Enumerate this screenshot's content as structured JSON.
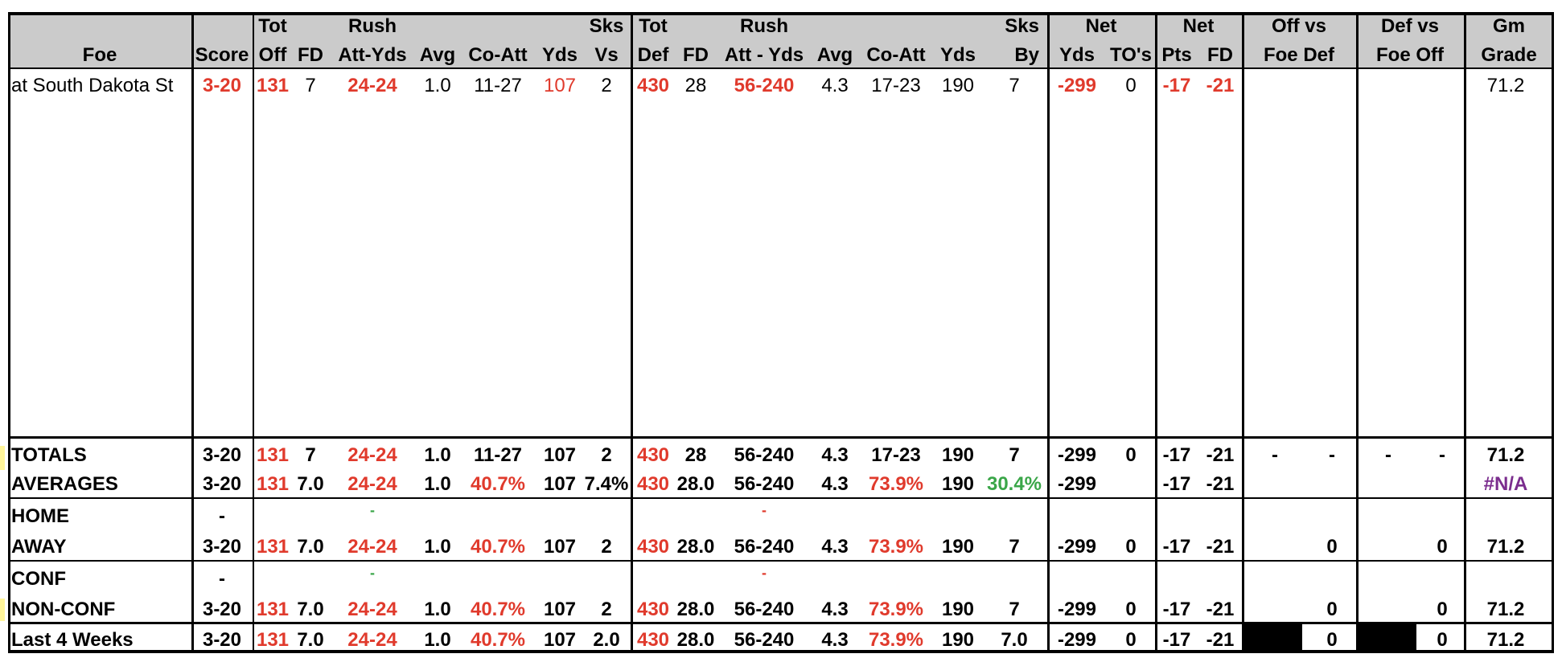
{
  "headers": {
    "foe": "Foe",
    "score": "Score",
    "tot_off_1": "Tot",
    "tot_off_2": "Off",
    "fd_off": "FD",
    "rush_off_1": "Rush",
    "rush_off_2": "Att-Yds",
    "avg_off": "Avg",
    "coatt_off": "Co-Att",
    "yds_off": "Yds",
    "sks_vs_1": "Sks",
    "sks_vs_2": "Vs",
    "tot_def_1": "Tot",
    "tot_def_2": "Def",
    "fd_def": "FD",
    "rush_def_1": "Rush",
    "rush_def_2": "Att - Yds",
    "avg_def": "Avg",
    "coatt_def": "Co-Att",
    "yds_def": "Yds",
    "sks_by_1": "Sks",
    "sks_by_2": "By",
    "net_1": "Net",
    "net_yds": "Yds",
    "net_tos": "TO's",
    "net2_1": "Net",
    "net_pts": "Pts",
    "net_fd": "FD",
    "offvs_1": "Off vs",
    "offvs_2": "Foe Def",
    "defvs_1": "Def vs",
    "defvs_2": "Foe Off",
    "gm_1": "Gm",
    "gm_2": "Grade"
  },
  "game": {
    "foe": "at South Dakota St",
    "score": "3-20",
    "tot_off": "131",
    "fd_off": "7",
    "rush_off": "24-24",
    "avg_off": "1.0",
    "coatt_off": "11-27",
    "yds_off": "107",
    "sks_vs": "2",
    "tot_def": "430",
    "fd_def": "28",
    "rush_def": "56-240",
    "avg_def": "4.3",
    "coatt_def": "17-23",
    "yds_def": "190",
    "sks_by": "7",
    "net_yds": "-299",
    "net_tos": "0",
    "net_pts": "-17",
    "net_fd": "-21",
    "grade": "71.2"
  },
  "totals": {
    "label": "TOTALS",
    "score": "3-20",
    "tot_off": "131",
    "fd_off": "7",
    "rush_off": "24-24",
    "avg_off": "1.0",
    "coatt_off": "11-27",
    "yds_off": "107",
    "sks_vs": "2",
    "tot_def": "430",
    "fd_def": "28",
    "rush_def": "56-240",
    "avg_def": "4.3",
    "coatt_def": "17-23",
    "yds_def": "190",
    "sks_by": "7",
    "net_yds": "-299",
    "net_tos": "0",
    "net_pts": "-17",
    "net_fd": "-21",
    "offvs_a": "-",
    "offvs_b": "-",
    "defvs_a": "-",
    "defvs_b": "-",
    "grade": "71.2"
  },
  "averages": {
    "label": "AVERAGES",
    "score": "3-20",
    "tot_off": "131",
    "fd_off": "7.0",
    "rush_off": "24-24",
    "avg_off": "1.0",
    "coatt_off": "40.7%",
    "yds_off": "107",
    "sks_vs": "7.4%",
    "tot_def": "430",
    "fd_def": "28.0",
    "rush_def": "56-240",
    "avg_def": "4.3",
    "coatt_def": "73.9%",
    "yds_def": "190",
    "sks_by": "30.4%",
    "net_yds": "-299",
    "net_pts": "-17",
    "net_fd": "-21",
    "grade": "#N/A"
  },
  "home": {
    "label": "HOME",
    "score": "-",
    "rush_off": "-",
    "rush_def": "-"
  },
  "away": {
    "label": "AWAY",
    "score": "3-20",
    "tot_off": "131",
    "fd_off": "7.0",
    "rush_off": "24-24",
    "avg_off": "1.0",
    "coatt_off": "40.7%",
    "yds_off": "107",
    "sks_vs": "2",
    "tot_def": "430",
    "fd_def": "28.0",
    "rush_def": "56-240",
    "avg_def": "4.3",
    "coatt_def": "73.9%",
    "yds_def": "190",
    "sks_by": "7",
    "net_yds": "-299",
    "net_tos": "0",
    "net_pts": "-17",
    "net_fd": "-21",
    "offvs": "0",
    "defvs": "0",
    "grade": "71.2"
  },
  "conf": {
    "label": "CONF",
    "score": "-",
    "rush_off": "-",
    "rush_def": "-"
  },
  "nonconf": {
    "label": "NON-CONF",
    "score": "3-20",
    "tot_off": "131",
    "fd_off": "7.0",
    "rush_off": "24-24",
    "avg_off": "1.0",
    "coatt_off": "40.7%",
    "yds_off": "107",
    "sks_vs": "2",
    "tot_def": "430",
    "fd_def": "28.0",
    "rush_def": "56-240",
    "avg_def": "4.3",
    "coatt_def": "73.9%",
    "yds_def": "190",
    "sks_by": "7",
    "net_yds": "-299",
    "net_tos": "0",
    "net_pts": "-17",
    "net_fd": "-21",
    "offvs": "0",
    "defvs": "0",
    "grade": "71.2"
  },
  "last4": {
    "label": "Last 4 Weeks",
    "score": "3-20",
    "tot_off": "131",
    "fd_off": "7.0",
    "rush_off": "24-24",
    "avg_off": "1.0",
    "coatt_off": "40.7%",
    "yds_off": "107",
    "sks_vs": "2.0",
    "tot_def": "430",
    "fd_def": "28.0",
    "rush_def": "56-240",
    "avg_def": "4.3",
    "coatt_def": "73.9%",
    "yds_def": "190",
    "sks_by": "7.0",
    "net_yds": "-299",
    "net_tos": "0",
    "net_pts": "-17",
    "net_fd": "-21",
    "offvs": "0",
    "defvs": "0",
    "grade": "71.2"
  },
  "colors": {
    "header_bg": "#cbcbcb",
    "negative_red": "#e03a2c",
    "positive_green": "#3aa648",
    "na_purple": "#7b2d8e",
    "row_marker_yellow": "#fff59a"
  }
}
